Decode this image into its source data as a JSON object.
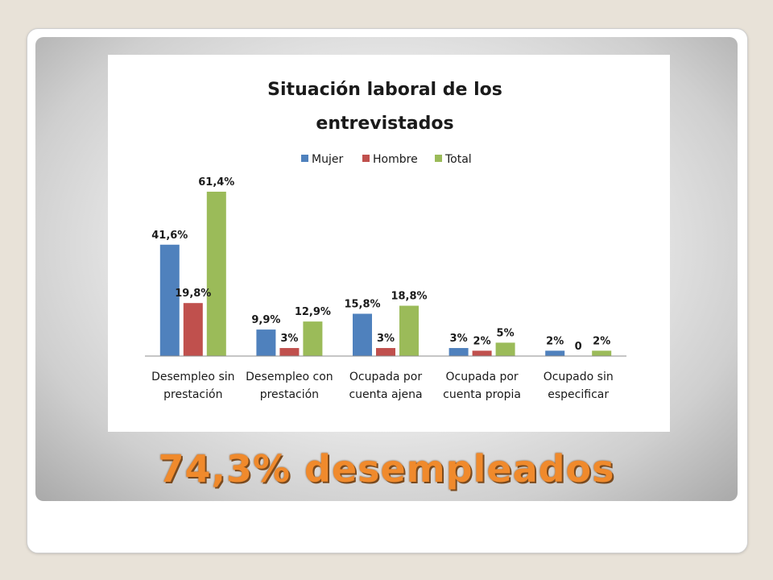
{
  "slide": {
    "caption": "74,3% desempleados"
  },
  "colors": {
    "mujer": "#4f81bd",
    "hombre": "#c0504d",
    "total": "#9bbb59",
    "caption": "#f08a2c"
  },
  "chart_data": {
    "type": "bar",
    "title_lines": [
      "Situación laboral de los",
      "entrevistados"
    ],
    "categories": [
      [
        "Desempleo sin",
        "prestación"
      ],
      [
        "Desempleo con",
        "prestación"
      ],
      [
        "Ocupada por",
        "cuenta ajena"
      ],
      [
        "Ocupada por",
        "cuenta propia"
      ],
      [
        "Ocupado sin",
        "especificar"
      ]
    ],
    "series": [
      {
        "name": "Mujer",
        "values": [
          41.6,
          9.9,
          15.8,
          3,
          2
        ],
        "labels": [
          "41,6%",
          "9,9%",
          "15,8%",
          "3%",
          "2%"
        ]
      },
      {
        "name": "Hombre",
        "values": [
          19.8,
          3,
          3,
          2,
          0
        ],
        "labels": [
          "19,8%",
          "3%",
          "3%",
          "2%",
          "0"
        ]
      },
      {
        "name": "Total",
        "values": [
          61.4,
          12.9,
          18.8,
          5,
          2
        ],
        "labels": [
          "61,4%",
          "12,9%",
          "18,8%",
          "5%",
          "2%"
        ]
      }
    ],
    "ylim": [
      0,
      65
    ],
    "grid": false,
    "legend": "top"
  }
}
